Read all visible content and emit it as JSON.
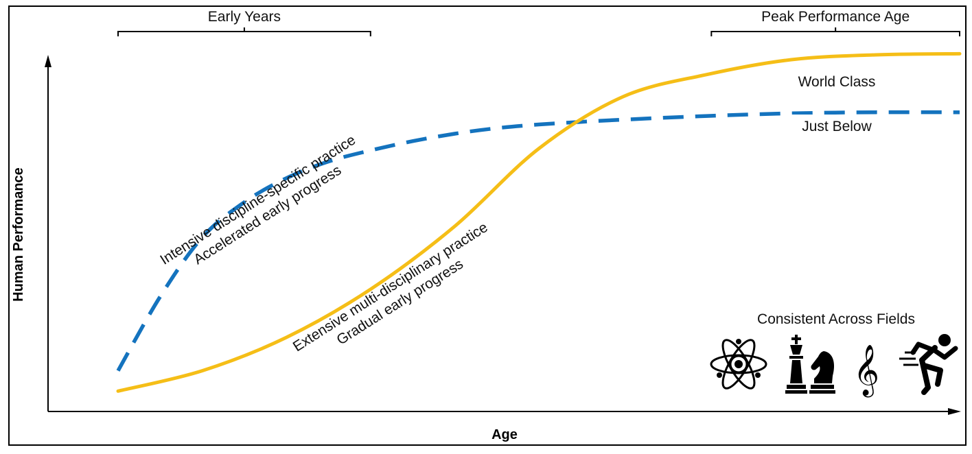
{
  "chart_data": {
    "type": "line",
    "title": "",
    "xlabel": "Age",
    "ylabel": "Human Performance",
    "xlim": [
      0,
      100
    ],
    "ylim": [
      0,
      100
    ],
    "grid": false,
    "brackets": [
      {
        "label": "Early Years",
        "range": [
          0,
          30
        ]
      },
      {
        "label": "Peak Performance Age",
        "range": [
          70.5,
          100
        ]
      }
    ],
    "series": [
      {
        "name": "World Class",
        "color": "#F5BE17",
        "style": "solid",
        "label": "World Class",
        "x": [
          0,
          10,
          20,
          30,
          40,
          50,
          60,
          70,
          80,
          90,
          100
        ],
        "y": [
          5.5,
          11,
          20,
          33,
          50,
          71,
          85,
          91,
          95,
          96.3,
          96.6
        ]
      },
      {
        "name": "Just Below",
        "color": "#1473BE",
        "style": "dashed",
        "label": "Just Below",
        "x": [
          0,
          5,
          10,
          15,
          20,
          25,
          30,
          35,
          40,
          45,
          50,
          55,
          60,
          70,
          80,
          90,
          100
        ],
        "y": [
          11,
          31,
          47,
          56.5,
          63,
          67.5,
          70.5,
          73,
          75,
          76.5,
          77.5,
          78.2,
          78.8,
          79.8,
          80.5,
          80.8,
          80.8
        ]
      }
    ],
    "annotations": [
      {
        "lines": [
          "Intensive discipline-specific practice",
          "Accelerated early progress"
        ],
        "series": "Just Below"
      },
      {
        "lines": [
          "Extensive multi-disciplinary practice",
          "Gradual early progress"
        ],
        "series": "World Class"
      }
    ],
    "fields": {
      "title": "Consistent Across Fields",
      "icons": [
        "atom-icon",
        "chess-icon",
        "treble-clef-icon",
        "runner-icon"
      ]
    }
  }
}
